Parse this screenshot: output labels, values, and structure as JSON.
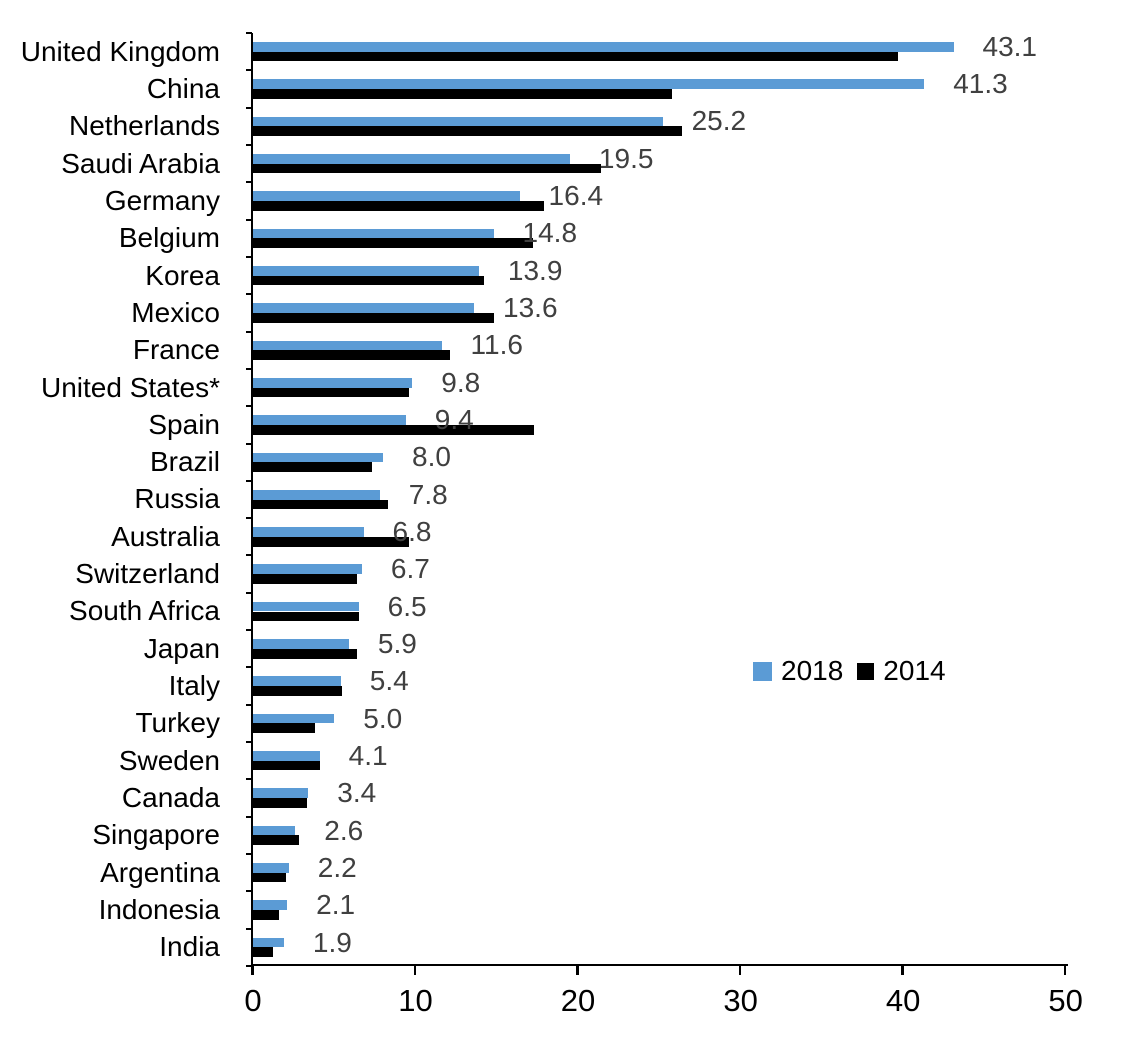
{
  "colors": {
    "series_2018": "#5B9BD5",
    "series_2014": "#000000",
    "value_label_text": "#404040",
    "axis": "#000000",
    "background": "#ffffff"
  },
  "legend": {
    "items": [
      {
        "label": "2018",
        "color": "#5B9BD5"
      },
      {
        "label": "2014",
        "color": "#000000"
      }
    ]
  },
  "chart_data": {
    "type": "bar",
    "orientation": "horizontal",
    "title": "",
    "xlabel": "",
    "ylabel": "",
    "xlim": [
      0,
      50
    ],
    "x_ticks": [
      "0",
      "10",
      "20",
      "30",
      "40",
      "50"
    ],
    "grid": false,
    "legend_position": "middle-right",
    "data_labels_series": "2018",
    "categories": [
      "United Kingdom",
      "China",
      "Netherlands",
      "Saudi Arabia",
      "Germany",
      "Belgium",
      "Korea",
      "Mexico",
      "France",
      "United States*",
      "Spain",
      "Brazil",
      "Russia",
      "Australia",
      "Switzerland",
      "South Africa",
      "Japan",
      "Italy",
      "Turkey",
      "Sweden",
      "Canada",
      "Singapore",
      "Argentina",
      "Indonesia",
      "India"
    ],
    "series": [
      {
        "name": "2018",
        "values": [
          43.1,
          41.3,
          25.2,
          19.5,
          16.4,
          14.8,
          13.9,
          13.6,
          11.6,
          9.8,
          9.4,
          8.0,
          7.8,
          6.8,
          6.7,
          6.5,
          5.9,
          5.4,
          5.0,
          4.1,
          3.4,
          2.6,
          2.2,
          2.1,
          1.9
        ]
      },
      {
        "name": "2014",
        "values": [
          39.7,
          25.8,
          26.4,
          21.4,
          17.9,
          17.2,
          14.2,
          14.8,
          12.1,
          9.6,
          17.3,
          7.3,
          8.3,
          9.6,
          6.4,
          6.5,
          6.4,
          5.5,
          3.8,
          4.1,
          3.3,
          2.8,
          2.0,
          1.6,
          1.2
        ]
      }
    ],
    "data_labels": [
      "43.1",
      "41.3",
      "25.2",
      "19.5",
      "16.4",
      "14.8",
      "13.9",
      "13.6",
      "11.6",
      "9.8",
      "9.4",
      "8.0",
      "7.8",
      "6.8",
      "6.7",
      "6.5",
      "5.9",
      "5.4",
      "5.0",
      "4.1",
      "3.4",
      "2.6",
      "2.2",
      "2.1",
      "1.9"
    ]
  }
}
